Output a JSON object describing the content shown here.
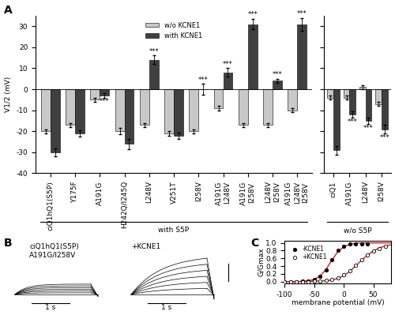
{
  "chart_data": [
    {
      "type": "bar",
      "title": "A",
      "y_label": "V1/2 (mV)",
      "categories": [
        "ciQ1hQ1(S5P)",
        "Y175F",
        "A191G",
        "H242Q/I245Q",
        "L248V",
        "V251T",
        "I258V",
        "A191G\nL248V",
        "A191G\nI258V",
        "L248V\nI258V",
        "A191G\nL248V\nI258V",
        "ciQ1",
        "A191G",
        "L248V",
        "I258V"
      ],
      "series": [
        {
          "name": "w/o KCNE1",
          "color": "#c8c8c8",
          "values": [
            -20,
            -17,
            -5,
            -20,
            -17,
            -21,
            -20,
            -9,
            -17,
            -17,
            -10,
            -4,
            -4,
            1,
            -7
          ],
          "errors": [
            1,
            1,
            1,
            1.5,
            1,
            1,
            1,
            1,
            1,
            1,
            1,
            1,
            1,
            1,
            1
          ]
        },
        {
          "name": "with KCNE1",
          "color": "#404040",
          "values": [
            -30,
            -21,
            -3,
            -26,
            14,
            -22,
            0,
            8,
            31,
            4,
            31,
            -29,
            -12,
            -15,
            -19
          ],
          "errors": [
            2,
            1.5,
            1,
            2.5,
            2,
            1.5,
            2.5,
            2,
            2.5,
            1,
            3,
            2,
            1.5,
            1.5,
            2
          ],
          "significance": [
            null,
            null,
            "***",
            null,
            "***",
            null,
            "***",
            "***",
            "***",
            "***",
            "***",
            null,
            "***",
            "***",
            "***"
          ]
        }
      ],
      "groups": [
        {
          "label": "with S5P",
          "first": "ciQ1hQ1(S5P)",
          "last": "A191G\nL248V\nI258V"
        },
        {
          "label": "w/o S5P",
          "first": "ciQ1",
          "last": "I258V"
        }
      ],
      "ylim": [
        -40,
        35
      ],
      "yticks": [
        -40,
        -30,
        -20,
        -10,
        0,
        10,
        20,
        30
      ],
      "legend": "upper center"
    },
    {
      "type": "scatter",
      "title": "C",
      "x_label": "membrane potential (mV)",
      "y_label": "G/Gmax",
      "series": [
        {
          "name": "-KCNE1",
          "color": "#000000",
          "marker": "filled",
          "x": [
            -100,
            -90,
            -80,
            -70,
            -60,
            -50,
            -40,
            -30,
            -20,
            -10,
            0,
            10,
            20,
            30,
            40
          ],
          "values": [
            0,
            0,
            0,
            0.01,
            0.02,
            0.05,
            0.13,
            0.3,
            0.57,
            0.8,
            0.92,
            0.97,
            0.98,
            0.97,
            0.97
          ]
        },
        {
          "name": "+KCNE1",
          "color": "#000000",
          "marker": "open",
          "x": [
            -100,
            -90,
            -80,
            -70,
            -60,
            -50,
            -40,
            -30,
            -20,
            -10,
            0,
            10,
            20,
            30,
            40,
            50,
            60,
            70
          ],
          "values": [
            0,
            0,
            0,
            0,
            0,
            0.01,
            0.02,
            0.03,
            0.05,
            0.09,
            0.17,
            0.27,
            0.42,
            0.56,
            0.68,
            0.79,
            0.86,
            0.91
          ]
        }
      ],
      "fits": [
        {
          "color": "#e00000",
          "line_style": "solid",
          "x": [
            -100,
            -90,
            -80,
            -70,
            -60,
            -50,
            -40,
            -30,
            -20,
            -10,
            0,
            10,
            20,
            30,
            40,
            50,
            60,
            70,
            80
          ],
          "values": [
            0,
            0,
            0,
            0.01,
            0.02,
            0.05,
            0.14,
            0.31,
            0.55,
            0.77,
            0.9,
            0.96,
            0.99,
            1,
            1,
            1,
            1,
            1,
            1
          ]
        },
        {
          "color": "#e00000",
          "line_style": "solid",
          "x": [
            -100,
            -90,
            -80,
            -70,
            -60,
            -50,
            -40,
            -30,
            -20,
            -10,
            0,
            10,
            20,
            30,
            40,
            50,
            60,
            70,
            80
          ],
          "values": [
            0,
            0,
            0,
            0,
            0,
            0.01,
            0.01,
            0.02,
            0.04,
            0.08,
            0.15,
            0.26,
            0.4,
            0.55,
            0.68,
            0.79,
            0.87,
            0.92,
            0.95
          ]
        }
      ],
      "xlim": [
        -100,
        80
      ],
      "xticks": [
        -100,
        -50,
        0,
        50
      ],
      "ylim": [
        -0.05,
        1.05
      ],
      "yticks": [
        {
          "value": 0,
          "label": "0.0"
        },
        {
          "value": 0.2,
          "label": "0.2"
        },
        {
          "value": 0.4,
          "label": "0.4"
        },
        {
          "value": 0.6,
          "label": "0.6"
        },
        {
          "value": 0.8,
          "label": "0.8"
        },
        {
          "value": 1,
          "label": "1.0"
        }
      ],
      "legend": "upper left"
    }
  ],
  "panel_B": {
    "label": "B",
    "construct": "ciQ1hQ1(S5P)\nA191G/I258V",
    "condition": "+KCNE1",
    "time_scale": "1 s"
  }
}
